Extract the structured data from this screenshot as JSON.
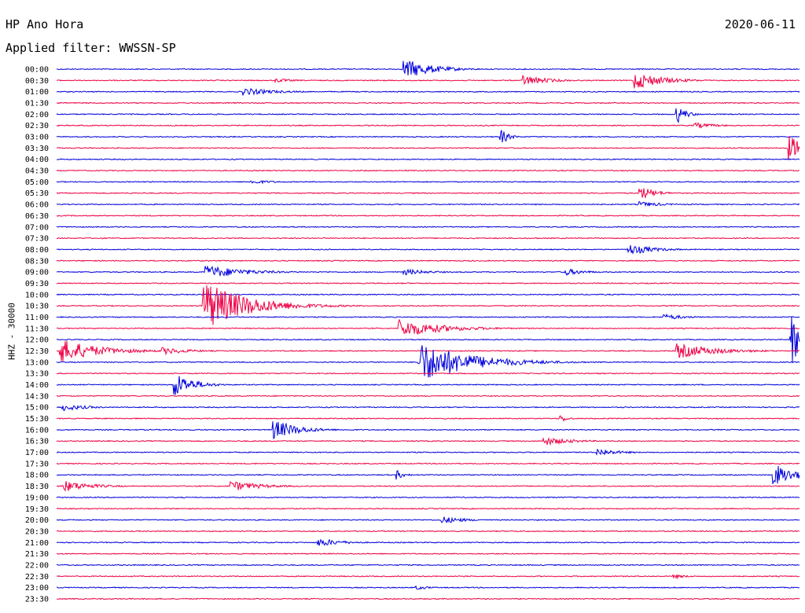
{
  "header": {
    "station": "HP Ano Hora",
    "date": "2020-06-11",
    "filter": "Applied filter: WWSSN-SP"
  },
  "channel_label": "HHZ - 30000",
  "colors": {
    "trace_a": "#0000dd",
    "trace_b": "#ee0044",
    "background": "#ffffff",
    "text": "#000000"
  },
  "chart_data": {
    "type": "line",
    "title": "HP Ano Hora",
    "subtitle": "Applied filter: WWSSN-SP",
    "ylabel": "HHZ - 30000",
    "time_labels": [
      "00:00",
      "00:30",
      "01:00",
      "01:30",
      "02:00",
      "02:30",
      "03:00",
      "03:30",
      "04:00",
      "04:30",
      "05:00",
      "05:30",
      "06:00",
      "06:30",
      "07:00",
      "07:30",
      "08:00",
      "08:30",
      "09:00",
      "09:30",
      "10:00",
      "10:30",
      "11:00",
      "11:30",
      "12:00",
      "12:30",
      "13:00",
      "13:30",
      "14:00",
      "14:30",
      "15:00",
      "15:30",
      "16:00",
      "16:30",
      "17:00",
      "17:30",
      "18:00",
      "18:30",
      "19:00",
      "19:30",
      "20:00",
      "20:30",
      "21:00",
      "21:30",
      "22:00",
      "22:30",
      "23:00",
      "23:30"
    ],
    "x_range_minutes": [
      0,
      30
    ],
    "row_colors": [
      "#0000dd",
      "#ee0044"
    ],
    "events": [
      {
        "row": 0,
        "minute": 14.0,
        "amp": 14,
        "dur": 1.8
      },
      {
        "row": 1,
        "minute": 8.8,
        "amp": 3,
        "dur": 1.2
      },
      {
        "row": 1,
        "minute": 18.8,
        "amp": 7,
        "dur": 1.6
      },
      {
        "row": 1,
        "minute": 23.3,
        "amp": 12,
        "dur": 1.8
      },
      {
        "row": 2,
        "minute": 7.5,
        "amp": 5,
        "dur": 2.2
      },
      {
        "row": 4,
        "minute": 25.0,
        "amp": 14,
        "dur": 0.6
      },
      {
        "row": 5,
        "minute": 25.7,
        "amp": 4,
        "dur": 1.5
      },
      {
        "row": 6,
        "minute": 17.9,
        "amp": 12,
        "dur": 0.5
      },
      {
        "row": 7,
        "minute": 29.5,
        "amp": 17,
        "dur": 1.5
      },
      {
        "row": 10,
        "minute": 7.8,
        "amp": 3,
        "dur": 1.5
      },
      {
        "row": 11,
        "minute": 23.5,
        "amp": 10,
        "dur": 1.0
      },
      {
        "row": 12,
        "minute": 23.5,
        "amp": 4,
        "dur": 1.5
      },
      {
        "row": 16,
        "minute": 23.0,
        "amp": 8,
        "dur": 1.6
      },
      {
        "row": 18,
        "minute": 6.0,
        "amp": 9,
        "dur": 2.5
      },
      {
        "row": 18,
        "minute": 14.0,
        "amp": 4,
        "dur": 1.8
      },
      {
        "row": 18,
        "minute": 20.5,
        "amp": 5,
        "dur": 1.3
      },
      {
        "row": 21,
        "minute": 5.9,
        "amp": 34,
        "dur": 2.8
      },
      {
        "row": 22,
        "minute": 24.5,
        "amp": 4,
        "dur": 1.5
      },
      {
        "row": 23,
        "minute": 13.8,
        "amp": 12,
        "dur": 2.8
      },
      {
        "row": 24,
        "minute": 29.6,
        "amp": 35,
        "dur": 1.0
      },
      {
        "row": 25,
        "minute": 0.1,
        "amp": 16,
        "dur": 2.5
      },
      {
        "row": 25,
        "minute": 4.2,
        "amp": 5,
        "dur": 1.8
      },
      {
        "row": 25,
        "minute": 25.0,
        "amp": 10,
        "dur": 2.6
      },
      {
        "row": 26,
        "minute": 14.6,
        "amp": 28,
        "dur": 3.2
      },
      {
        "row": 28,
        "minute": 4.7,
        "amp": 18,
        "dur": 1.2
      },
      {
        "row": 30,
        "minute": 0.2,
        "amp": 5,
        "dur": 1.5
      },
      {
        "row": 31,
        "minute": 20.3,
        "amp": 6,
        "dur": 0.5
      },
      {
        "row": 32,
        "minute": 8.7,
        "amp": 14,
        "dur": 1.6
      },
      {
        "row": 33,
        "minute": 19.6,
        "amp": 6,
        "dur": 1.8
      },
      {
        "row": 34,
        "minute": 21.8,
        "amp": 5,
        "dur": 1.5
      },
      {
        "row": 36,
        "minute": 13.7,
        "amp": 7,
        "dur": 0.5
      },
      {
        "row": 36,
        "minute": 28.9,
        "amp": 16,
        "dur": 1.4
      },
      {
        "row": 37,
        "minute": 0.2,
        "amp": 8,
        "dur": 1.8
      },
      {
        "row": 37,
        "minute": 7.0,
        "amp": 7,
        "dur": 2.0
      },
      {
        "row": 40,
        "minute": 15.5,
        "amp": 5,
        "dur": 1.5
      },
      {
        "row": 42,
        "minute": 10.5,
        "amp": 6,
        "dur": 1.6
      },
      {
        "row": 45,
        "minute": 24.8,
        "amp": 3,
        "dur": 1.2
      },
      {
        "row": 46,
        "minute": 14.5,
        "amp": 3,
        "dur": 1.0
      }
    ]
  }
}
